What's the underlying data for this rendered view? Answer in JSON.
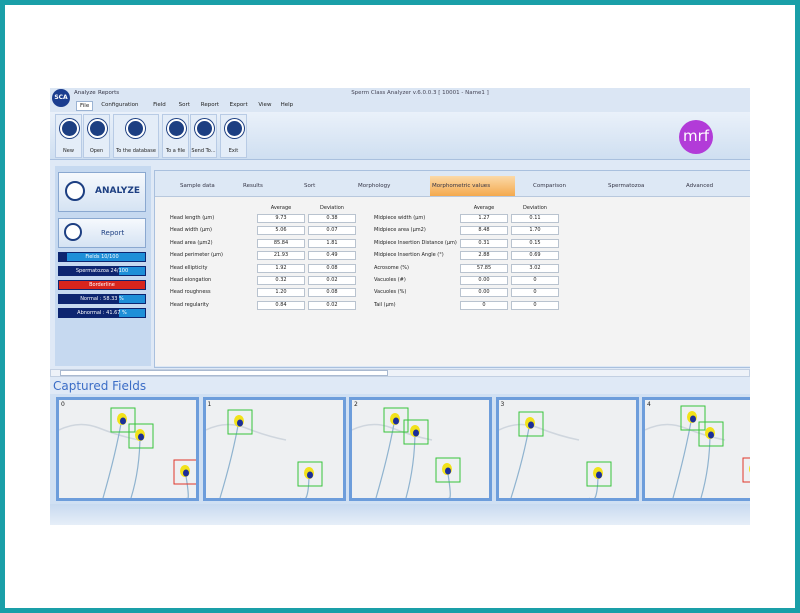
{
  "window": {
    "logo": "SCA",
    "tabs": [
      "Analyze",
      "Reports"
    ],
    "title": "Sperm Class Analyzer v.6.0.0.3 [ 10001 - Name1 ]"
  },
  "menu": [
    "File",
    "Configuration",
    "Field",
    "Sort",
    "Report",
    "Export",
    "View",
    "Help"
  ],
  "toolbar": [
    "New",
    "Open",
    "To the database",
    "To a file",
    "Send To...",
    "Exit"
  ],
  "brand": "mrf",
  "sidebar": {
    "analyze": "ANALYZE",
    "report": "Report",
    "status": [
      {
        "label": "Fields 10/100",
        "color": "#1e8fd8"
      },
      {
        "label": "Spermatozoa 24/100",
        "color": "#1e8fd8"
      },
      {
        "label": "Borderline",
        "color": "#d8251d"
      },
      {
        "label": "Normal : 58.33 %",
        "color": "#1e8fd8"
      },
      {
        "label": "Abnormal : 41.67 %",
        "color": "#1e8fd8"
      }
    ]
  },
  "tabs": [
    "Sample data",
    "Results",
    "Sort",
    "Morphology",
    "Morphometric values",
    "Comparison",
    "Spermatozoa",
    "Advanced"
  ],
  "active_tab": 4,
  "morphometrics": {
    "columns": [
      "Average",
      "Deviation"
    ],
    "left": [
      [
        "Head length (µm)",
        "9.73",
        "0.38"
      ],
      [
        "Head width (µm)",
        "5.06",
        "0.07"
      ],
      [
        "Head area (µm2)",
        "85.84",
        "1.81"
      ],
      [
        "Head perimeter (µm)",
        "21.93",
        "0.49"
      ],
      [
        "Head ellipticity",
        "1.92",
        "0.08"
      ],
      [
        "Head elongation",
        "0.32",
        "0.02"
      ],
      [
        "Head roughness",
        "1.20",
        "0.08"
      ],
      [
        "Head regularity",
        "0.84",
        "0.02"
      ]
    ],
    "right": [
      [
        "Midpiece width (µm)",
        "1.27",
        "0.11"
      ],
      [
        "Midpiece area (µm2)",
        "8.48",
        "1.70"
      ],
      [
        "Midpiece Insertion Distance (µm)",
        "0.31",
        "0.15"
      ],
      [
        "Midpiece Insertion Angle (°)",
        "2.88",
        "0.69"
      ],
      [
        "Acrosome (%)",
        "57.85",
        "3.02"
      ],
      [
        "Vacuoles (#)",
        "0.00",
        "0"
      ],
      [
        "Vacuoles (%)",
        "0.00",
        "0"
      ],
      [
        "Tail (µm)",
        "0",
        "0"
      ]
    ]
  },
  "captured": {
    "title": "Captured Fields",
    "fields": [
      "0",
      "1",
      "2",
      "3",
      "4"
    ]
  }
}
